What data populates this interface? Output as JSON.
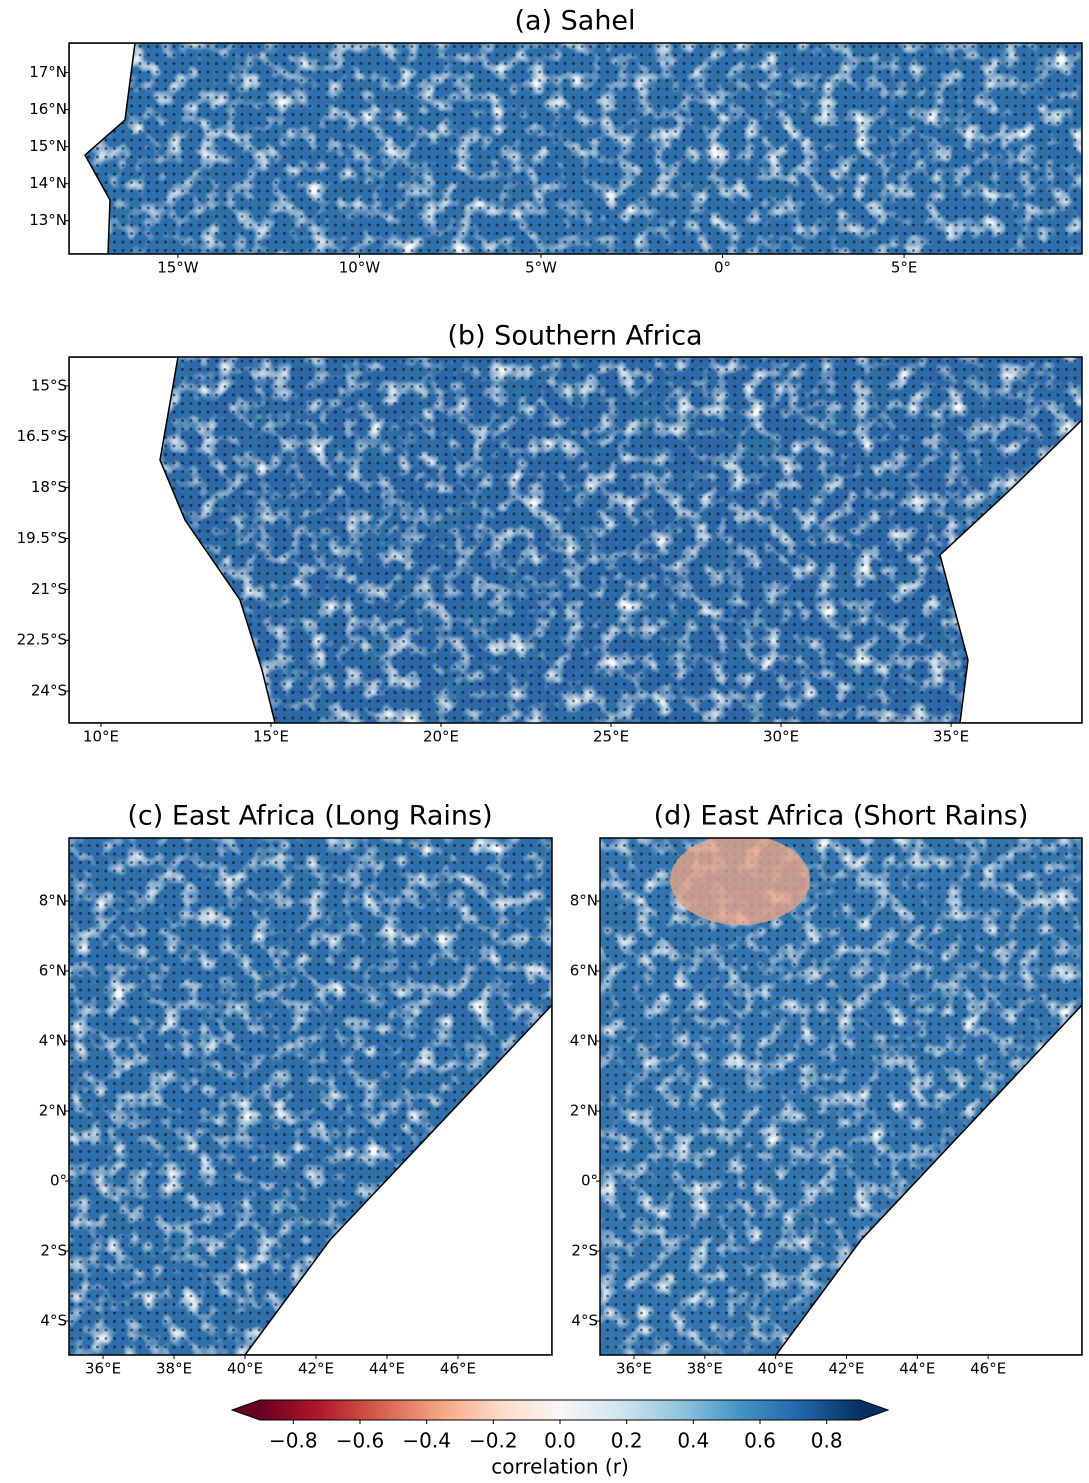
{
  "panels": [
    {
      "title": "(a) Sahel",
      "xlim": [
        -18,
        9.9
      ],
      "ylim": [
        12.1,
        17.8
      ],
      "xticks": [
        {
          "value": -15,
          "label": "15°W"
        },
        {
          "value": -10,
          "label": "10°W"
        },
        {
          "value": -5,
          "label": "5°W"
        },
        {
          "value": 0,
          "label": "0°"
        },
        {
          "value": 5,
          "label": "5°E"
        }
      ],
      "yticks": [
        {
          "value": 13,
          "label": "13°N"
        },
        {
          "value": 14,
          "label": "14°N"
        },
        {
          "value": 15,
          "label": "15°N"
        },
        {
          "value": 16,
          "label": "16°N"
        },
        {
          "value": 17,
          "label": "17°N"
        }
      ]
    },
    {
      "title": "(b) Southern Africa",
      "xlim": [
        9.06,
        38.85
      ],
      "ylim": [
        -24.94,
        -14.15
      ],
      "xticks": [
        {
          "value": 10,
          "label": "10°E"
        },
        {
          "value": 15,
          "label": "15°E"
        },
        {
          "value": 20,
          "label": "20°E"
        },
        {
          "value": 25,
          "label": "25°E"
        },
        {
          "value": 30,
          "label": "30°E"
        },
        {
          "value": 35,
          "label": "35°E"
        }
      ],
      "yticks": [
        {
          "value": -24,
          "label": "24°S"
        },
        {
          "value": -22.5,
          "label": "22.5°S"
        },
        {
          "value": -21,
          "label": "21°S"
        },
        {
          "value": -19.5,
          "label": "19.5°S"
        },
        {
          "value": -18,
          "label": "18°S"
        },
        {
          "value": -16.5,
          "label": "16.5°S"
        },
        {
          "value": -15,
          "label": "15°S"
        }
      ]
    },
    {
      "title": "(c) East Africa (Long Rains)",
      "xlim": [
        35.04,
        48.65
      ],
      "ylim": [
        -4.97,
        9.8
      ],
      "xticks": [
        {
          "value": 36,
          "label": "36°E"
        },
        {
          "value": 38,
          "label": "38°E"
        },
        {
          "value": 40,
          "label": "40°E"
        },
        {
          "value": 42,
          "label": "42°E"
        },
        {
          "value": 44,
          "label": "44°E"
        },
        {
          "value": 46,
          "label": "46°E"
        }
      ],
      "yticks": [
        {
          "value": -4,
          "label": "4°S"
        },
        {
          "value": -2,
          "label": "2°S"
        },
        {
          "value": 0,
          "label": "0°"
        },
        {
          "value": 2,
          "label": "2°N"
        },
        {
          "value": 4,
          "label": "4°N"
        },
        {
          "value": 6,
          "label": "6°N"
        },
        {
          "value": 8,
          "label": "8°N"
        }
      ]
    },
    {
      "title": "(d) East Africa (Short Rains)",
      "xlim": [
        35.04,
        48.65
      ],
      "ylim": [
        -4.97,
        9.8
      ],
      "xticks": [
        {
          "value": 36,
          "label": "36°E"
        },
        {
          "value": 38,
          "label": "38°E"
        },
        {
          "value": 40,
          "label": "40°E"
        },
        {
          "value": 42,
          "label": "42°E"
        },
        {
          "value": 44,
          "label": "44°E"
        },
        {
          "value": 46,
          "label": "46°E"
        }
      ],
      "yticks": [
        {
          "value": -4,
          "label": "4°S"
        },
        {
          "value": -2,
          "label": "2°S"
        },
        {
          "value": 0,
          "label": "0°"
        },
        {
          "value": 2,
          "label": "2°N"
        },
        {
          "value": 4,
          "label": "4°N"
        },
        {
          "value": 6,
          "label": "6°N"
        },
        {
          "value": 8,
          "label": "8°N"
        }
      ]
    }
  ],
  "colorbar": {
    "label": "correlation (r)",
    "clim": [
      -0.9,
      0.9
    ],
    "colors": [
      "#67001f",
      "#b2182b",
      "#d6604d",
      "#f4a582",
      "#fddbc7",
      "#f7f7f7",
      "#d1e5f0",
      "#92c5de",
      "#4393c3",
      "#2166ac",
      "#053061"
    ],
    "ticks": [
      {
        "value": -0.8,
        "label": "−0.8"
      },
      {
        "value": -0.6,
        "label": "−0.6"
      },
      {
        "value": -0.4,
        "label": "−0.4"
      },
      {
        "value": -0.2,
        "label": "−0.2"
      },
      {
        "value": 0,
        "label": "0.0"
      },
      0.2,
      0.4,
      0.6,
      0.8
    ]
  }
}
